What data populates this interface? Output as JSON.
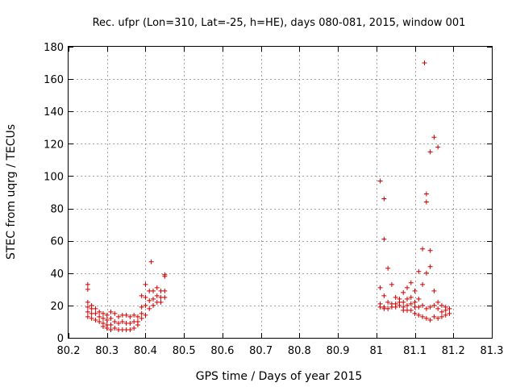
{
  "chart_data": {
    "type": "scatter",
    "title": "Rec. ufpr (Lon=310, Lat=-25, h=HE), days 080-081, 2015, window 001",
    "xlabel": "GPS time / Days of year 2015",
    "ylabel": "STEC from uqrg / TECUs",
    "xlim": [
      80.2,
      81.3
    ],
    "ylim": [
      0,
      180
    ],
    "xticks": [
      "80.2",
      "80.3",
      "80.4",
      "80.5",
      "80.6",
      "80.7",
      "80.8",
      "80.9",
      "81",
      "81.1",
      "81.2",
      "81.3"
    ],
    "yticks": [
      "0",
      "20",
      "40",
      "60",
      "80",
      "100",
      "120",
      "140",
      "160",
      "180"
    ],
    "grid": true,
    "marker": "+",
    "color": "#cc0000",
    "series": [
      {
        "name": "STEC",
        "points": [
          [
            80.25,
            33
          ],
          [
            80.25,
            30
          ],
          [
            80.25,
            22
          ],
          [
            80.25,
            19
          ],
          [
            80.25,
            16
          ],
          [
            80.25,
            13
          ],
          [
            80.26,
            20
          ],
          [
            80.26,
            18
          ],
          [
            80.26,
            15
          ],
          [
            80.26,
            12
          ],
          [
            80.27,
            18
          ],
          [
            80.27,
            15
          ],
          [
            80.27,
            11
          ],
          [
            80.28,
            16
          ],
          [
            80.28,
            13
          ],
          [
            80.28,
            10
          ],
          [
            80.29,
            15
          ],
          [
            80.29,
            12
          ],
          [
            80.29,
            9
          ],
          [
            80.29,
            7
          ],
          [
            80.3,
            14
          ],
          [
            80.3,
            11
          ],
          [
            80.3,
            8
          ],
          [
            80.3,
            6
          ],
          [
            80.31,
            16
          ],
          [
            80.31,
            12
          ],
          [
            80.31,
            8
          ],
          [
            80.31,
            5
          ],
          [
            80.32,
            15
          ],
          [
            80.32,
            10
          ],
          [
            80.32,
            6
          ],
          [
            80.33,
            13
          ],
          [
            80.33,
            9
          ],
          [
            80.33,
            5
          ],
          [
            80.34,
            14
          ],
          [
            80.34,
            10
          ],
          [
            80.34,
            5
          ],
          [
            80.35,
            14
          ],
          [
            80.35,
            9
          ],
          [
            80.35,
            5
          ],
          [
            80.36,
            13
          ],
          [
            80.36,
            9
          ],
          [
            80.36,
            5
          ],
          [
            80.37,
            14
          ],
          [
            80.37,
            10
          ],
          [
            80.37,
            6
          ],
          [
            80.38,
            13
          ],
          [
            80.38,
            10
          ],
          [
            80.38,
            8
          ],
          [
            80.39,
            19
          ],
          [
            80.39,
            15
          ],
          [
            80.39,
            12
          ],
          [
            80.39,
            26
          ],
          [
            80.4,
            33
          ],
          [
            80.4,
            25
          ],
          [
            80.4,
            20
          ],
          [
            80.4,
            14
          ],
          [
            80.41,
            29
          ],
          [
            80.41,
            23
          ],
          [
            80.41,
            18
          ],
          [
            80.415,
            47
          ],
          [
            80.42,
            29
          ],
          [
            80.42,
            24
          ],
          [
            80.42,
            20
          ],
          [
            80.43,
            31
          ],
          [
            80.43,
            26
          ],
          [
            80.43,
            22
          ],
          [
            80.44,
            29
          ],
          [
            80.44,
            25
          ],
          [
            80.44,
            22
          ],
          [
            80.45,
            39
          ],
          [
            80.45,
            38
          ],
          [
            80.45,
            29
          ],
          [
            80.45,
            25
          ],
          [
            81.01,
            97
          ],
          [
            81.01,
            31
          ],
          [
            81.01,
            21
          ],
          [
            81.01,
            19
          ],
          [
            81.02,
            86
          ],
          [
            81.02,
            61
          ],
          [
            81.02,
            26
          ],
          [
            81.02,
            19
          ],
          [
            81.02,
            18
          ],
          [
            81.03,
            43
          ],
          [
            81.03,
            22
          ],
          [
            81.03,
            18
          ],
          [
            81.04,
            33
          ],
          [
            81.04,
            21
          ],
          [
            81.04,
            19
          ],
          [
            81.05,
            25
          ],
          [
            81.05,
            21
          ],
          [
            81.05,
            19
          ],
          [
            81.06,
            24
          ],
          [
            81.06,
            22
          ],
          [
            81.06,
            20
          ],
          [
            81.07,
            28
          ],
          [
            81.07,
            22
          ],
          [
            81.07,
            19
          ],
          [
            81.07,
            17
          ],
          [
            81.08,
            31
          ],
          [
            81.08,
            24
          ],
          [
            81.08,
            20
          ],
          [
            81.08,
            17
          ],
          [
            81.09,
            34
          ],
          [
            81.09,
            25
          ],
          [
            81.09,
            21
          ],
          [
            81.09,
            17
          ],
          [
            81.1,
            29
          ],
          [
            81.1,
            22
          ],
          [
            81.1,
            19
          ],
          [
            81.1,
            15
          ],
          [
            81.11,
            41
          ],
          [
            81.11,
            24
          ],
          [
            81.11,
            19
          ],
          [
            81.11,
            14
          ],
          [
            81.12,
            55
          ],
          [
            81.12,
            33
          ],
          [
            81.12,
            20
          ],
          [
            81.12,
            13
          ],
          [
            81.125,
            170
          ],
          [
            81.13,
            89
          ],
          [
            81.13,
            84
          ],
          [
            81.13,
            40
          ],
          [
            81.13,
            18
          ],
          [
            81.13,
            12
          ],
          [
            81.14,
            115
          ],
          [
            81.14,
            54
          ],
          [
            81.14,
            44
          ],
          [
            81.14,
            19
          ],
          [
            81.14,
            11
          ],
          [
            81.15,
            124
          ],
          [
            81.15,
            29
          ],
          [
            81.15,
            20
          ],
          [
            81.15,
            13
          ],
          [
            81.16,
            118
          ],
          [
            81.16,
            22
          ],
          [
            81.16,
            18
          ],
          [
            81.16,
            12
          ],
          [
            81.17,
            20
          ],
          [
            81.17,
            16
          ],
          [
            81.17,
            13
          ],
          [
            81.18,
            19
          ],
          [
            81.18,
            17
          ],
          [
            81.18,
            14
          ],
          [
            81.19,
            18
          ],
          [
            81.19,
            15
          ]
        ]
      }
    ]
  }
}
